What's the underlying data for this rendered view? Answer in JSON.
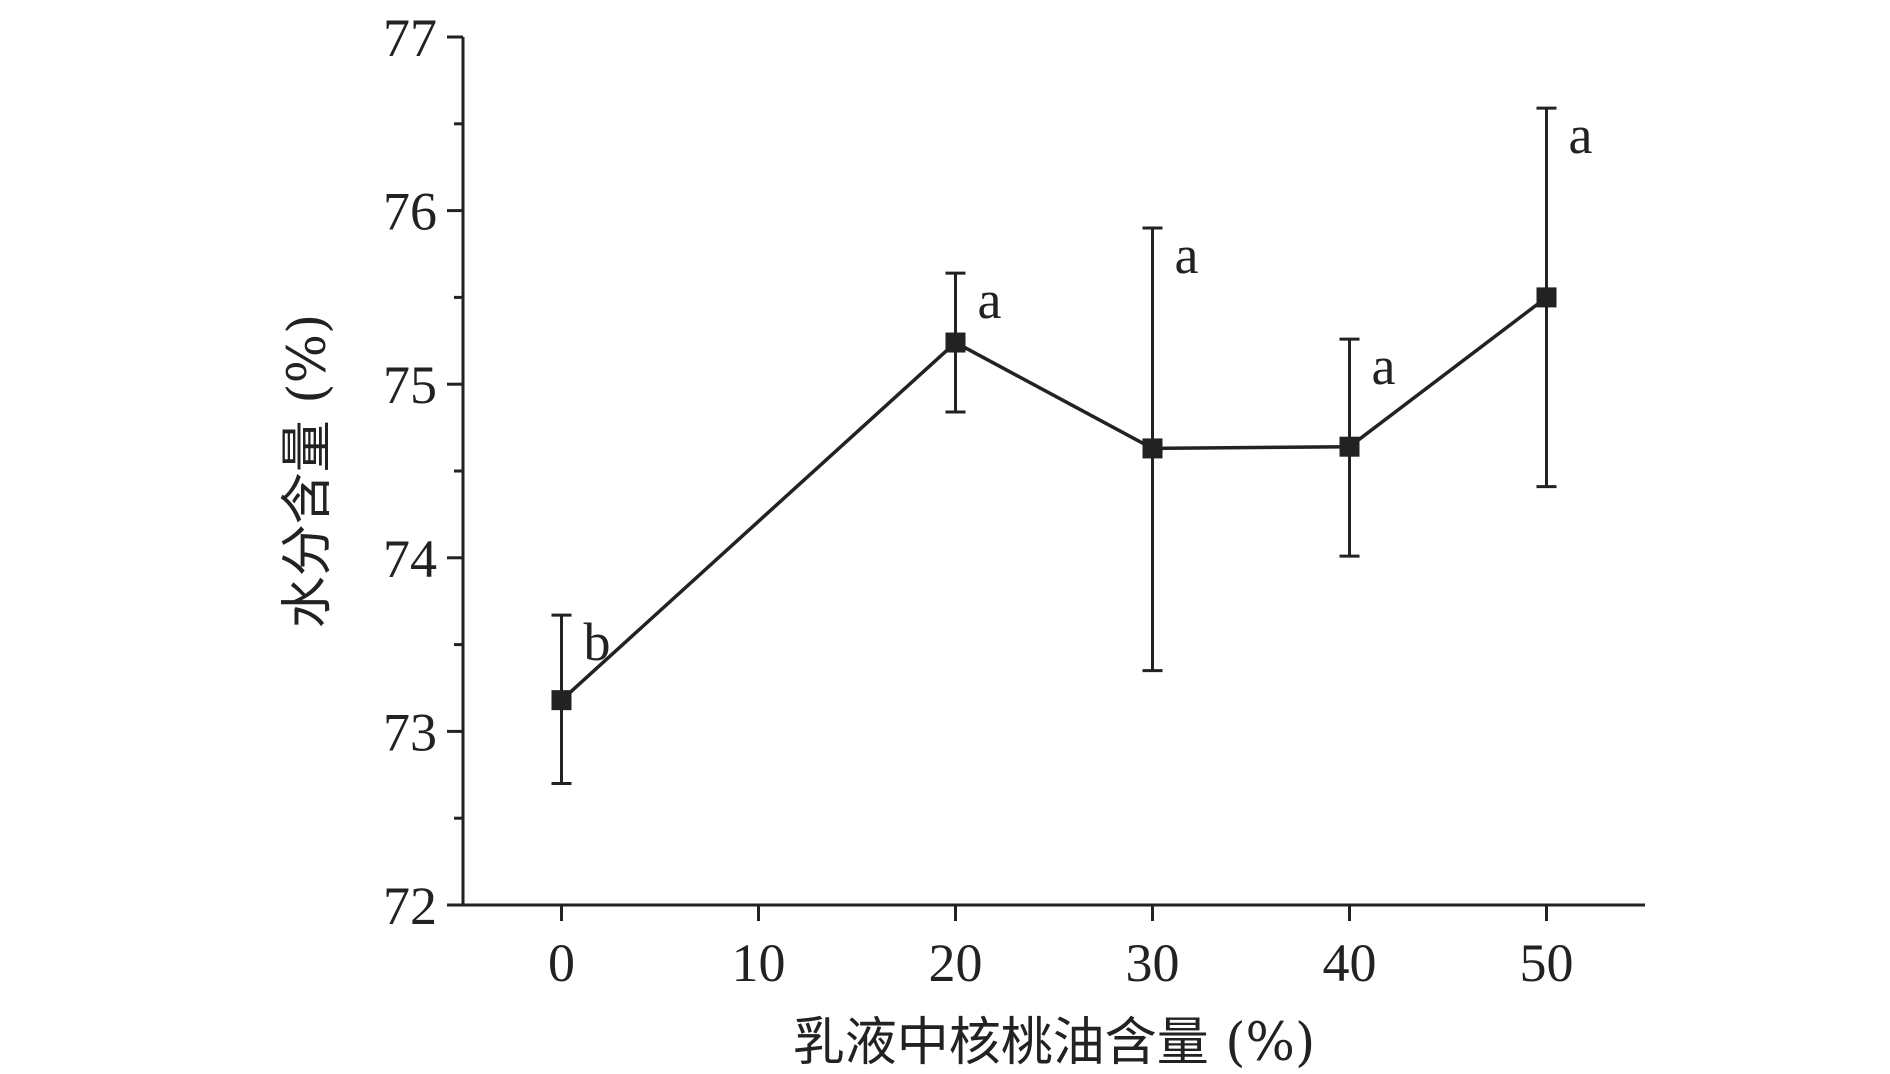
{
  "chart_data": {
    "type": "line",
    "title": "",
    "xlabel": "乳液中核桃油含量 (%)",
    "ylabel": "水分含量 (%)",
    "xlim": [
      -5,
      55
    ],
    "ylim": [
      72,
      77
    ],
    "x_ticks": [
      0,
      10,
      20,
      30,
      40,
      50
    ],
    "x_tick_labels": [
      "0",
      "10",
      "20",
      "30",
      "40",
      "50"
    ],
    "y_ticks": [
      72,
      73,
      74,
      75,
      76,
      77
    ],
    "y_tick_labels": [
      "72",
      "73",
      "74",
      "75",
      "76",
      "77"
    ],
    "y_minor_step": 0.5,
    "grid": false,
    "legend": "none",
    "series": [
      {
        "marker": "square",
        "color": "#222222",
        "points": [
          {
            "x": 0,
            "y": 73.18,
            "err_low": 72.7,
            "err_high": 73.67,
            "sig": "b"
          },
          {
            "x": 20,
            "y": 75.24,
            "err_low": 74.84,
            "err_high": 75.64,
            "sig": "a"
          },
          {
            "x": 30,
            "y": 74.63,
            "err_low": 73.35,
            "err_high": 75.9,
            "sig": "a"
          },
          {
            "x": 40,
            "y": 74.64,
            "err_low": 74.01,
            "err_high": 75.26,
            "sig": "a"
          },
          {
            "x": 50,
            "y": 75.5,
            "err_low": 74.41,
            "err_high": 76.59,
            "sig": "a"
          }
        ]
      }
    ]
  }
}
